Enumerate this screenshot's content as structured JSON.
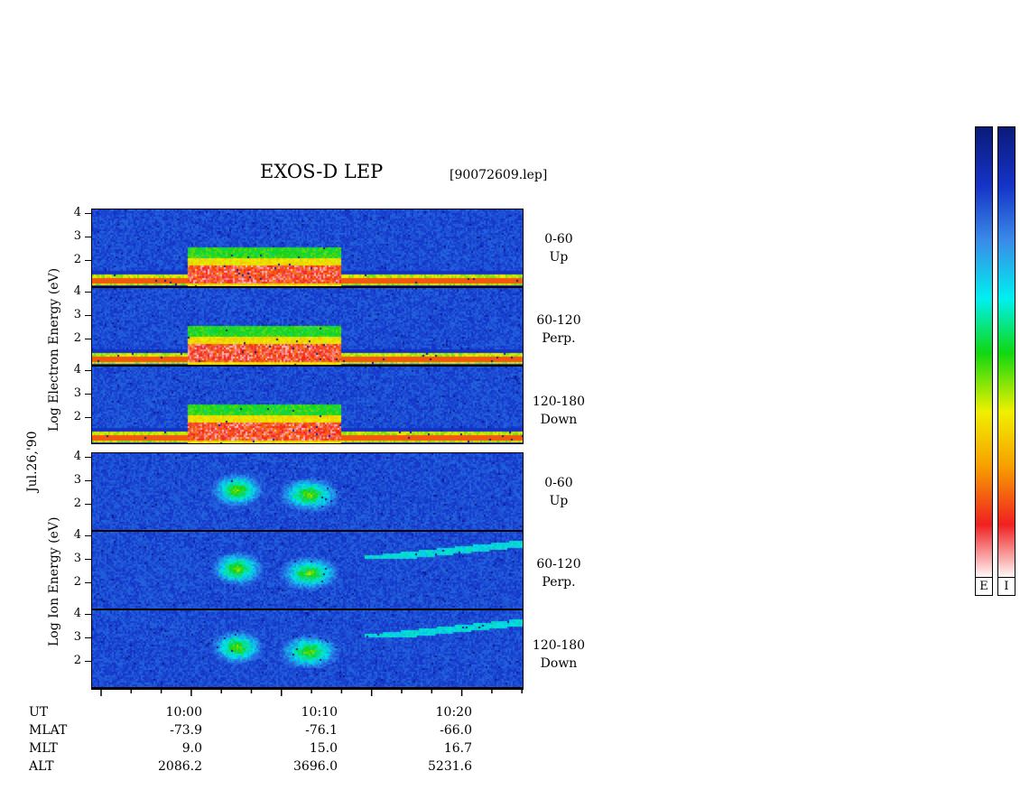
{
  "header": {
    "title": "EXOS-D LEP",
    "filename": "[90072609.lep]"
  },
  "side_label": "Jul.26,'90",
  "colors": {
    "background_panel": "#1a2bd0",
    "colorbar_stops": [
      "#0a1a7a",
      "#1533c8",
      "#3a8ae8",
      "#00f0f0",
      "#10d810",
      "#f0f000",
      "#f8a000",
      "#f02020",
      "#ffffff"
    ]
  },
  "chart_data": {
    "type": "heatmap",
    "title": "EXOS-D LEP",
    "subtitle": "[90072609.lep]",
    "groups": [
      {
        "name": "electron",
        "ylabel": "Log  Electron  Energy (eV)",
        "panels": [
          {
            "label_top": "0-60",
            "label_bottom": "Up",
            "yticks": [
              "4",
              "3",
              "2"
            ],
            "yrange": [
              1,
              4
            ]
          },
          {
            "label_top": "60-120",
            "label_bottom": "Perp.",
            "yticks": [
              "4",
              "3",
              "2"
            ],
            "yrange": [
              1,
              4
            ]
          },
          {
            "label_top": "120-180",
            "label_bottom": "Down",
            "yticks": [
              "4",
              "3",
              "2"
            ],
            "yrange": [
              1,
              4
            ]
          }
        ]
      },
      {
        "name": "ion",
        "ylabel": "Log  Ion  Energy (eV)",
        "panels": [
          {
            "label_top": "0-60",
            "label_bottom": "Up",
            "yticks": [
              "4",
              "3",
              "2"
            ],
            "yrange": [
              1,
              4
            ]
          },
          {
            "label_top": "60-120",
            "label_bottom": "Perp.",
            "yticks": [
              "4",
              "3",
              "2"
            ],
            "yrange": [
              1,
              4
            ]
          },
          {
            "label_top": "120-180",
            "label_bottom": "Down",
            "yticks": [
              "4",
              "3",
              "2"
            ],
            "yrange": [
              1,
              4
            ]
          }
        ]
      }
    ],
    "xticks": [
      "10:00",
      "10:10",
      "10:20"
    ],
    "ephemeris": {
      "labels": [
        "UT",
        "MLAT",
        "MLT",
        "ALT"
      ],
      "columns": [
        {
          "ut": "10:00",
          "mlat": "-73.9",
          "mlt": "9.0",
          "alt": "2086.2"
        },
        {
          "ut": "10:10",
          "mlat": "-76.1",
          "mlt": "15.0",
          "alt": "3696.0"
        },
        {
          "ut": "10:20",
          "mlat": "-66.0",
          "mlt": "16.7",
          "alt": "5231.6"
        }
      ]
    },
    "colorbars": [
      {
        "label": "E"
      },
      {
        "label": "I"
      }
    ]
  }
}
